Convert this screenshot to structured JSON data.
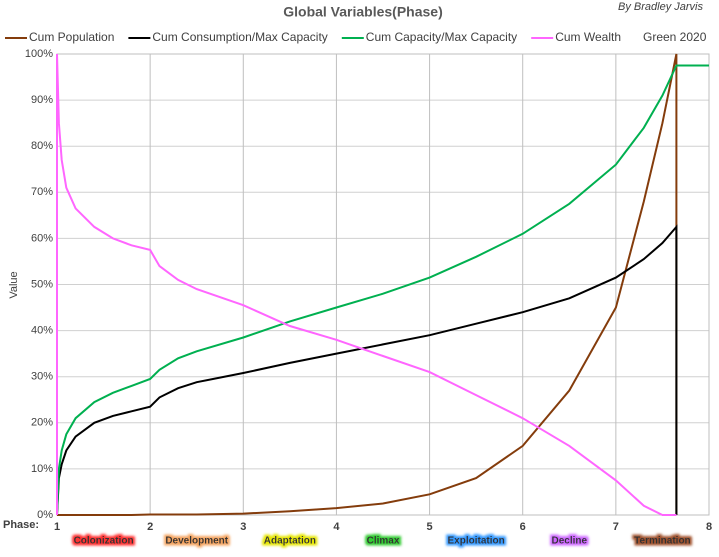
{
  "chart_data": {
    "type": "line",
    "title": "Global Variables(Phase)",
    "byline": "By Bradley Jarvis",
    "note": "Green 2020",
    "ylabel": "Value",
    "xlabel": "Phase:",
    "x": [
      1,
      1,
      1.02,
      1.05,
      1.1,
      1.2,
      1.4,
      1.6,
      1.8,
      2,
      2.1,
      2.3,
      2.5,
      3,
      3.5,
      4,
      4.5,
      5,
      5.5,
      6,
      6.5,
      7,
      7.3,
      7.5,
      7.65,
      7.65,
      8
    ],
    "series": [
      {
        "name": "Cum Population",
        "color": "#843c0c",
        "values": [
          0,
          0,
          0,
          0,
          0,
          0,
          0,
          0,
          0,
          0.1,
          0.1,
          0.1,
          0.1,
          0.3,
          0.8,
          1.5,
          2.5,
          4.5,
          8,
          15,
          27,
          45,
          68,
          85,
          100,
          0,
          null
        ]
      },
      {
        "name": "Cum Consumption/Max Capacity",
        "color": "#000000",
        "values": [
          0,
          0,
          8,
          11,
          14,
          17,
          20,
          21.5,
          22.5,
          23.5,
          25.5,
          27.5,
          28.8,
          30.8,
          33,
          35,
          37,
          39,
          41.5,
          44,
          47,
          51.5,
          55.5,
          59,
          62.5,
          0,
          null
        ]
      },
      {
        "name": "Cum Capacity/Max Capacity",
        "color": "#00b050",
        "values": [
          0,
          0,
          10,
          14,
          17.5,
          21,
          24.5,
          26.5,
          28,
          29.5,
          31.5,
          34,
          35.5,
          38.5,
          42,
          45,
          48,
          51.5,
          56,
          61,
          67.5,
          76,
          84,
          91,
          97.5,
          97.5,
          97.5
        ]
      },
      {
        "name": "Cum Wealth",
        "color": "#ff66ff",
        "values": [
          0,
          100,
          85,
          77,
          71,
          66.5,
          62.5,
          60,
          58.5,
          57.5,
          54,
          51,
          49,
          45.5,
          41,
          38,
          34.5,
          31,
          26,
          21,
          15,
          7.5,
          2,
          0,
          0,
          0,
          null
        ]
      }
    ],
    "xlim": [
      1,
      8
    ],
    "xticks": [
      1,
      2,
      3,
      4,
      5,
      6,
      7,
      8
    ],
    "ylim": [
      0,
      100
    ],
    "yticks": [
      {
        "value": 0,
        "label": "0%"
      },
      {
        "value": 10,
        "label": "10%"
      },
      {
        "value": 20,
        "label": "20%"
      },
      {
        "value": 30,
        "label": "30%"
      },
      {
        "value": 40,
        "label": "40%"
      },
      {
        "value": 50,
        "label": "50%"
      },
      {
        "value": 60,
        "label": "60%"
      },
      {
        "value": 70,
        "label": "70%"
      },
      {
        "value": 80,
        "label": "80%"
      },
      {
        "value": 90,
        "label": "90%"
      },
      {
        "value": 100,
        "label": "100%"
      }
    ],
    "grid": true,
    "phases": [
      {
        "label": "Colonization",
        "color": "#ff3030"
      },
      {
        "label": "Development",
        "color": "#f4a460"
      },
      {
        "label": "Adaptation",
        "color": "#e6e600"
      },
      {
        "label": "Climax",
        "color": "#33cc33"
      },
      {
        "label": "Exploitation",
        "color": "#3399ff"
      },
      {
        "label": "Decline",
        "color": "#cc66ff"
      },
      {
        "label": "Termination",
        "color": "#a0522d"
      }
    ]
  }
}
